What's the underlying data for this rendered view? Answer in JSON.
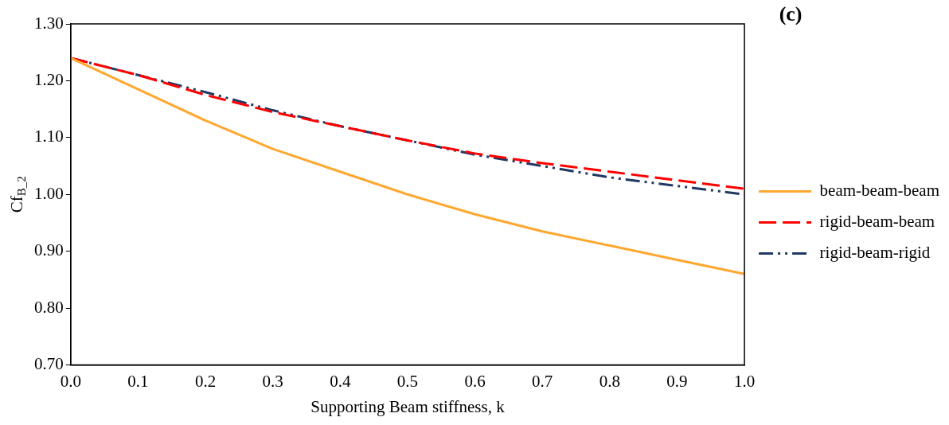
{
  "chart_data": {
    "type": "line",
    "xlabel": "Supporting Beam stiffness, k",
    "ylabel": "Cf$_{B_2}$",
    "annotations": [
      "(c)"
    ],
    "x": [
      0,
      0.1,
      0.2,
      0.3,
      0.4,
      0.5,
      0.6,
      0.7,
      0.8,
      0.9,
      1.0
    ],
    "series": [
      {
        "name": "beam-beam-beam",
        "color": "#ffa830",
        "line_style": "solid",
        "values": [
          1.24,
          1.185,
          1.13,
          1.08,
          1.04,
          1.0,
          0.965,
          0.935,
          0.91,
          0.885,
          0.86
        ]
      },
      {
        "name": "rigid-beam-beam",
        "color": "#ff0000",
        "line_style": "dashed",
        "values": [
          1.24,
          1.21,
          1.175,
          1.145,
          1.12,
          1.095,
          1.072,
          1.055,
          1.04,
          1.025,
          1.01
        ]
      },
      {
        "name": "rigid-beam-rigid",
        "color": "#203864",
        "line_style": "dashdot",
        "values": [
          1.24,
          1.21,
          1.18,
          1.148,
          1.12,
          1.095,
          1.07,
          1.05,
          1.03,
          1.015,
          1.0
        ]
      }
    ],
    "xlim": [
      0,
      1.0
    ],
    "xticks": [
      {
        "value": 0,
        "label": "0.0"
      },
      0.1,
      0.2,
      0.3,
      0.4,
      0.5,
      0.6,
      0.7,
      0.8,
      0.9,
      {
        "value": 1.0,
        "label": "1.0"
      }
    ],
    "ylim": [
      0.7,
      1.3
    ],
    "yticks": [
      {
        "value": 0.7,
        "label": "0.70"
      },
      {
        "value": 0.8,
        "label": "0.80"
      },
      {
        "value": 0.9,
        "label": "0.90"
      },
      {
        "value": 1.0,
        "label": "1.00"
      },
      {
        "value": 1.1,
        "label": "1.10"
      },
      {
        "value": 1.2,
        "label": "1.20"
      },
      {
        "value": 1.3,
        "label": "1.30"
      }
    ],
    "grid": false,
    "legend": "right",
    "marker": "none"
  }
}
